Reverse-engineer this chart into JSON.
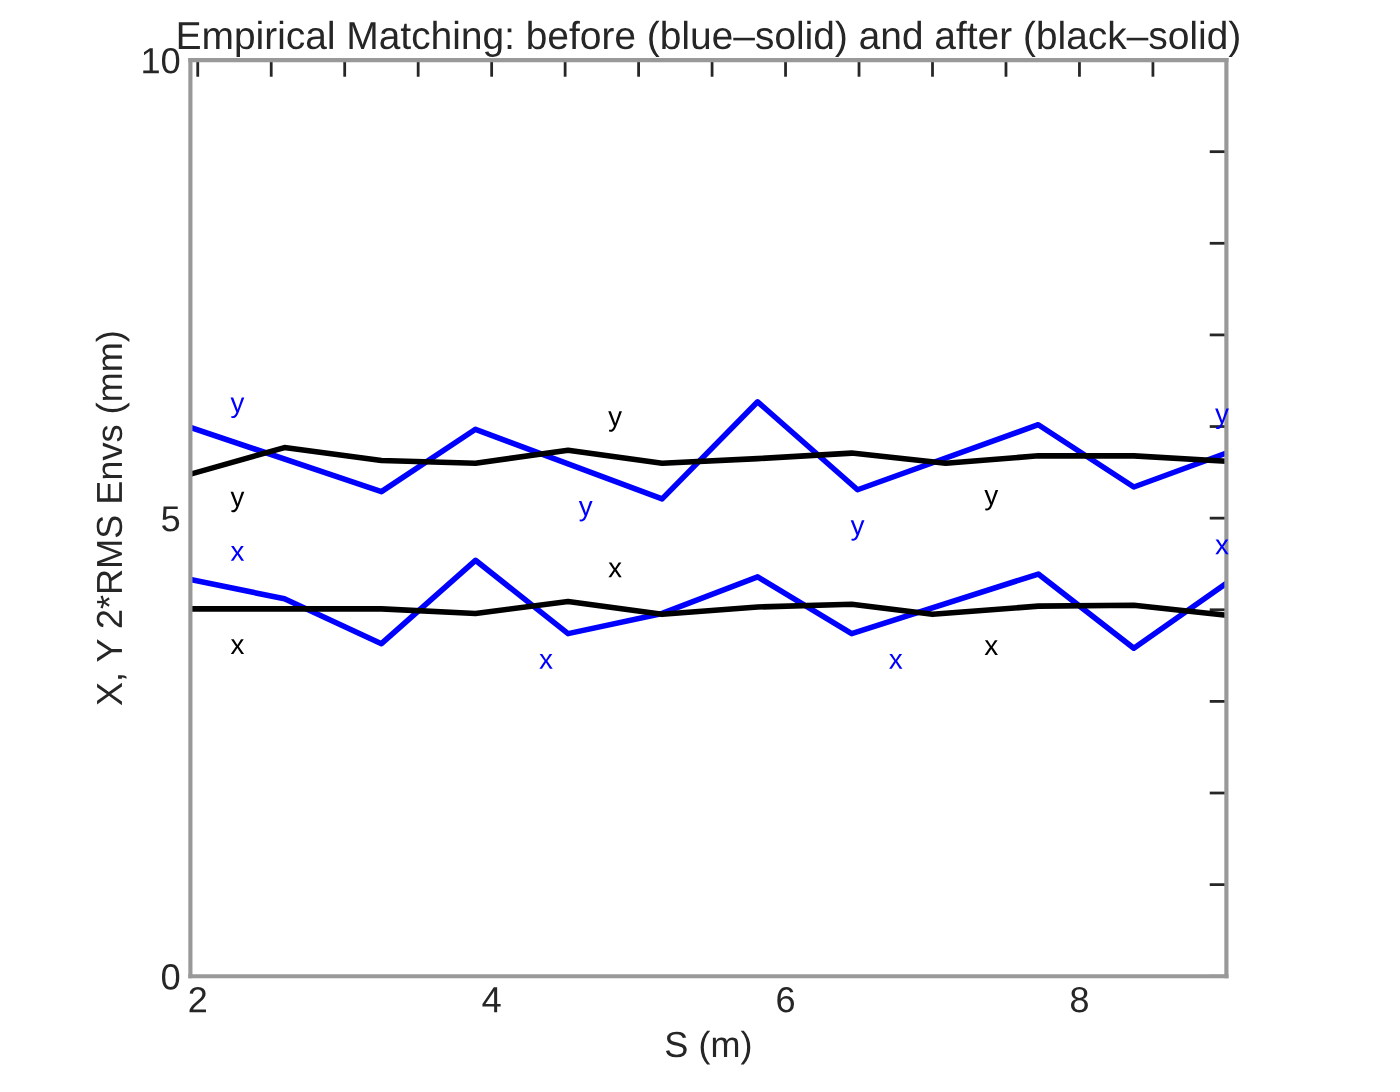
{
  "chart_data": {
    "type": "line",
    "title": "Empirical Matching: before (blue–solid) and after (black–solid)",
    "xlabel": "S (m)",
    "ylabel": "X, Y 2*RMS Envs (mm)",
    "xlim": [
      1.95,
      9.0
    ],
    "ylim": [
      0,
      10
    ],
    "xticks": [
      2,
      {
        "value": 2.5,
        "label": null
      },
      {
        "value": 3,
        "label": null
      },
      {
        "value": 3.5,
        "label": null
      },
      4,
      {
        "value": 4.5,
        "label": null
      },
      {
        "value": 5,
        "label": null
      },
      {
        "value": 5.5,
        "label": null
      },
      6,
      {
        "value": 6.5,
        "label": null
      },
      {
        "value": 7,
        "label": null
      },
      {
        "value": 7.5,
        "label": null
      },
      8,
      {
        "value": 8.5,
        "label": null
      }
    ],
    "yticks": [
      0,
      {
        "value": 1,
        "label": null
      },
      {
        "value": 2,
        "label": null
      },
      {
        "value": 3,
        "label": null
      },
      {
        "value": 4,
        "label": null
      },
      5,
      {
        "value": 6,
        "label": null
      },
      {
        "value": 7,
        "label": null
      },
      {
        "value": 8,
        "label": null
      },
      {
        "value": 9,
        "label": null
      },
      10
    ],
    "grid": false,
    "legend": false,
    "line_style": "solid",
    "marker": "none",
    "series": [
      {
        "color": "#0000ff",
        "x": [
          1.95,
          3.25,
          3.89,
          5.16,
          5.81,
          6.49,
          7.72,
          8.37,
          9.0
        ],
        "values": [
          5.99,
          5.29,
          5.97,
          5.21,
          6.27,
          5.31,
          6.02,
          5.34,
          5.71
        ]
      },
      {
        "color": "#0000ff",
        "x": [
          1.95,
          2.59,
          3.25,
          3.89,
          4.52,
          5.16,
          5.81,
          6.45,
          7.72,
          8.37,
          9.0
        ],
        "values": [
          4.33,
          4.12,
          3.63,
          4.54,
          3.74,
          3.96,
          4.36,
          3.74,
          4.39,
          3.58,
          4.29
        ]
      },
      {
        "color": "#000000",
        "x": [
          1.95,
          2.59,
          3.25,
          3.89,
          4.52,
          5.16,
          5.81,
          6.45,
          7.09,
          7.72,
          8.37,
          9.0
        ],
        "values": [
          5.48,
          5.77,
          5.63,
          5.6,
          5.74,
          5.6,
          5.65,
          5.71,
          5.6,
          5.68,
          5.68,
          5.62
        ]
      },
      {
        "color": "#000000",
        "x": [
          1.95,
          3.25,
          3.89,
          4.52,
          5.16,
          5.81,
          6.45,
          7.0,
          7.72,
          8.37,
          9.0
        ],
        "values": [
          4.01,
          4.01,
          3.96,
          4.09,
          3.95,
          4.03,
          4.06,
          3.95,
          4.04,
          4.05,
          3.94
        ]
      }
    ],
    "annotations": [
      {
        "text": "y",
        "x": 2.27,
        "y": 5.82
      },
      {
        "text": "y",
        "x": 4.64,
        "y": 5.52
      },
      {
        "text": "y",
        "x": 6.49,
        "y": 5.31
      },
      {
        "text": "y",
        "x": 8.97,
        "y": 5.7
      },
      {
        "text": "y",
        "x": 2.27,
        "y": 5.62
      },
      {
        "text": "y",
        "x": 4.84,
        "y": 5.67
      },
      {
        "text": "y",
        "x": 7.4,
        "y": 5.64
      },
      {
        "text": "x",
        "x": 2.27,
        "y": 4.2
      },
      {
        "text": "x",
        "x": 4.37,
        "y": 3.85
      },
      {
        "text": "x",
        "x": 6.75,
        "y": 3.85
      },
      {
        "text": "x",
        "x": 8.97,
        "y": 4.27
      },
      {
        "text": "x",
        "x": 2.27,
        "y": 4.01
      },
      {
        "text": "x",
        "x": 4.84,
        "y": 4.02
      },
      {
        "text": "x",
        "x": 7.4,
        "y": 4.0
      }
    ]
  }
}
